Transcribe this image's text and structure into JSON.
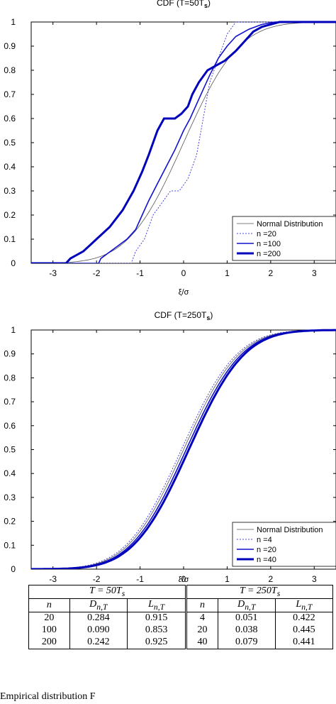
{
  "chart_data": [
    {
      "type": "line",
      "title": "CDF (T=50T",
      "title_sub": "s",
      "title_end": ")",
      "xlabel": "ξ/σ",
      "ylabel": "",
      "xlim": [
        -3.5,
        3.5
      ],
      "ylim": [
        0,
        1
      ],
      "xticks": [
        "-3",
        "-2",
        "-1",
        "0",
        "1",
        "2",
        "3"
      ],
      "yticks": [
        "0",
        "0.1",
        "0.2",
        "0.3",
        "0.4",
        "0.5",
        "0.6",
        "0.7",
        "0.8",
        "0.9",
        "1"
      ],
      "grid": false,
      "legend_position": "bottom-right",
      "series": [
        {
          "name": "Normal Distribution",
          "color": "#555555",
          "width": 0.8,
          "dash": "",
          "kind": "normal"
        },
        {
          "name": "n =20",
          "color": "#4444dd",
          "width": 1,
          "dash": "2,2",
          "points": [
            [
              -3.5,
              0
            ],
            [
              -1.2,
              0
            ],
            [
              -1.1,
              0.05
            ],
            [
              -0.9,
              0.1
            ],
            [
              -0.7,
              0.2
            ],
            [
              -0.5,
              0.25
            ],
            [
              -0.3,
              0.3
            ],
            [
              -0.1,
              0.3
            ],
            [
              0.1,
              0.35
            ],
            [
              0.2,
              0.4
            ],
            [
              0.3,
              0.45
            ],
            [
              0.4,
              0.55
            ],
            [
              0.5,
              0.65
            ],
            [
              0.6,
              0.75
            ],
            [
              0.7,
              0.8
            ],
            [
              0.8,
              0.85
            ],
            [
              0.9,
              0.9
            ],
            [
              1.0,
              0.95
            ],
            [
              1.2,
              1
            ],
            [
              3.5,
              1
            ]
          ]
        },
        {
          "name": "n =100",
          "color": "#1111cc",
          "width": 1.6,
          "dash": "",
          "points": [
            [
              -3.5,
              0
            ],
            [
              -1.95,
              0
            ],
            [
              -1.9,
              0.02
            ],
            [
              -1.6,
              0.06
            ],
            [
              -1.3,
              0.1
            ],
            [
              -1.1,
              0.14
            ],
            [
              -0.95,
              0.2
            ],
            [
              -0.8,
              0.26
            ],
            [
              -0.6,
              0.33
            ],
            [
              -0.4,
              0.4
            ],
            [
              -0.2,
              0.47
            ],
            [
              0,
              0.55
            ],
            [
              0.15,
              0.6
            ],
            [
              0.3,
              0.66
            ],
            [
              0.45,
              0.72
            ],
            [
              0.6,
              0.78
            ],
            [
              0.8,
              0.85
            ],
            [
              1.0,
              0.9
            ],
            [
              1.2,
              0.94
            ],
            [
              1.5,
              0.97
            ],
            [
              1.8,
              0.99
            ],
            [
              2.1,
              1
            ],
            [
              3.5,
              1
            ]
          ]
        },
        {
          "name": "n =200",
          "color": "#0000bb",
          "width": 3,
          "dash": "",
          "points": [
            [
              -3.5,
              0
            ],
            [
              -2.7,
              0
            ],
            [
              -2.6,
              0.02
            ],
            [
              -2.3,
              0.05
            ],
            [
              -2.0,
              0.1
            ],
            [
              -1.7,
              0.15
            ],
            [
              -1.4,
              0.22
            ],
            [
              -1.15,
              0.3
            ],
            [
              -0.95,
              0.38
            ],
            [
              -0.8,
              0.45
            ],
            [
              -0.6,
              0.55
            ],
            [
              -0.45,
              0.6
            ],
            [
              -0.2,
              0.6
            ],
            [
              -0.05,
              0.62
            ],
            [
              0.1,
              0.65
            ],
            [
              0.2,
              0.7
            ],
            [
              0.35,
              0.75
            ],
            [
              0.55,
              0.8
            ],
            [
              0.75,
              0.82
            ],
            [
              0.95,
              0.84
            ],
            [
              1.2,
              0.88
            ],
            [
              1.4,
              0.92
            ],
            [
              1.6,
              0.96
            ],
            [
              1.8,
              0.98
            ],
            [
              2.0,
              0.99
            ],
            [
              2.2,
              1
            ],
            [
              3.5,
              1
            ]
          ]
        }
      ]
    },
    {
      "type": "line",
      "title": "CDF (T=250T",
      "title_sub": "s",
      "title_end": ")",
      "xlabel": "ξ/σ",
      "ylabel": "",
      "xlim": [
        -3.5,
        3.5
      ],
      "ylim": [
        0,
        1
      ],
      "xticks": [
        "-3",
        "-2",
        "-1",
        "0",
        "1",
        "2",
        "3"
      ],
      "yticks": [
        "0",
        "0.1",
        "0.2",
        "0.3",
        "0.4",
        "0.5",
        "0.6",
        "0.7",
        "0.8",
        "0.9",
        "1"
      ],
      "grid": false,
      "legend_position": "bottom-right",
      "series": [
        {
          "name": "Normal Distribution",
          "color": "#555555",
          "width": 0.8,
          "dash": "",
          "kind": "normal"
        },
        {
          "name": "n =4",
          "color": "#4444dd",
          "width": 1,
          "dash": "2,2",
          "kind": "normal",
          "shift": 0.05
        },
        {
          "name": "n =20",
          "color": "#1111cc",
          "width": 1.6,
          "dash": "",
          "kind": "normal",
          "shift": -0.06
        },
        {
          "name": "n =40",
          "color": "#0000bb",
          "width": 3,
          "dash": "",
          "kind": "normal",
          "shift": -0.12
        }
      ]
    }
  ],
  "table": {
    "group_headers": [
      "T = 50T",
      "T = 250T"
    ],
    "group_sub": "s",
    "col_headers": [
      "n",
      "D",
      "L",
      "n",
      "D",
      "L"
    ],
    "col_sub": "n,T",
    "rows": [
      [
        "20",
        "0.284",
        "0.915",
        "4",
        "0.051",
        "0.422"
      ],
      [
        "100",
        "0.090",
        "0.853",
        "20",
        "0.038",
        "0.445"
      ],
      [
        "200",
        "0.242",
        "0.925",
        "40",
        "0.079",
        "0.441"
      ]
    ]
  },
  "caption": "Empirical distribution F"
}
